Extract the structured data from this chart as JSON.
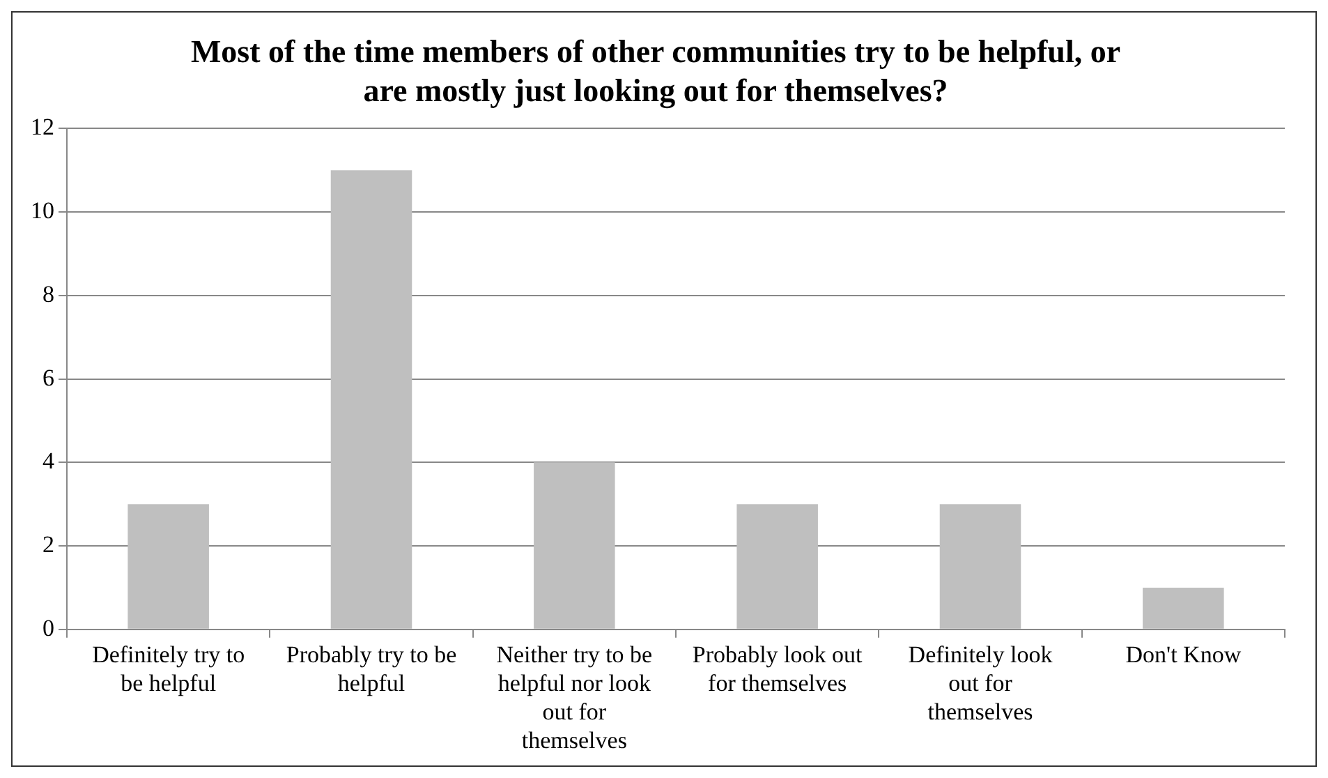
{
  "chart_data": {
    "type": "bar",
    "title": "Most of the time members of other communities try to be helpful, or are mostly just looking out for themselves?",
    "categories": [
      "Definitely try to be helpful",
      "Probably try to be helpful",
      "Neither try to be helpful nor look out for themselves",
      "Probably look out for themselves",
      "Definitely look out for themselves",
      "Don't Know"
    ],
    "values": [
      3,
      11,
      4,
      3,
      3,
      1
    ],
    "color": "#bfbfbf",
    "ylim": [
      0,
      12
    ],
    "yticks": [
      0,
      2,
      4,
      6,
      8,
      10,
      12
    ],
    "grid": "y",
    "legend": false
  }
}
